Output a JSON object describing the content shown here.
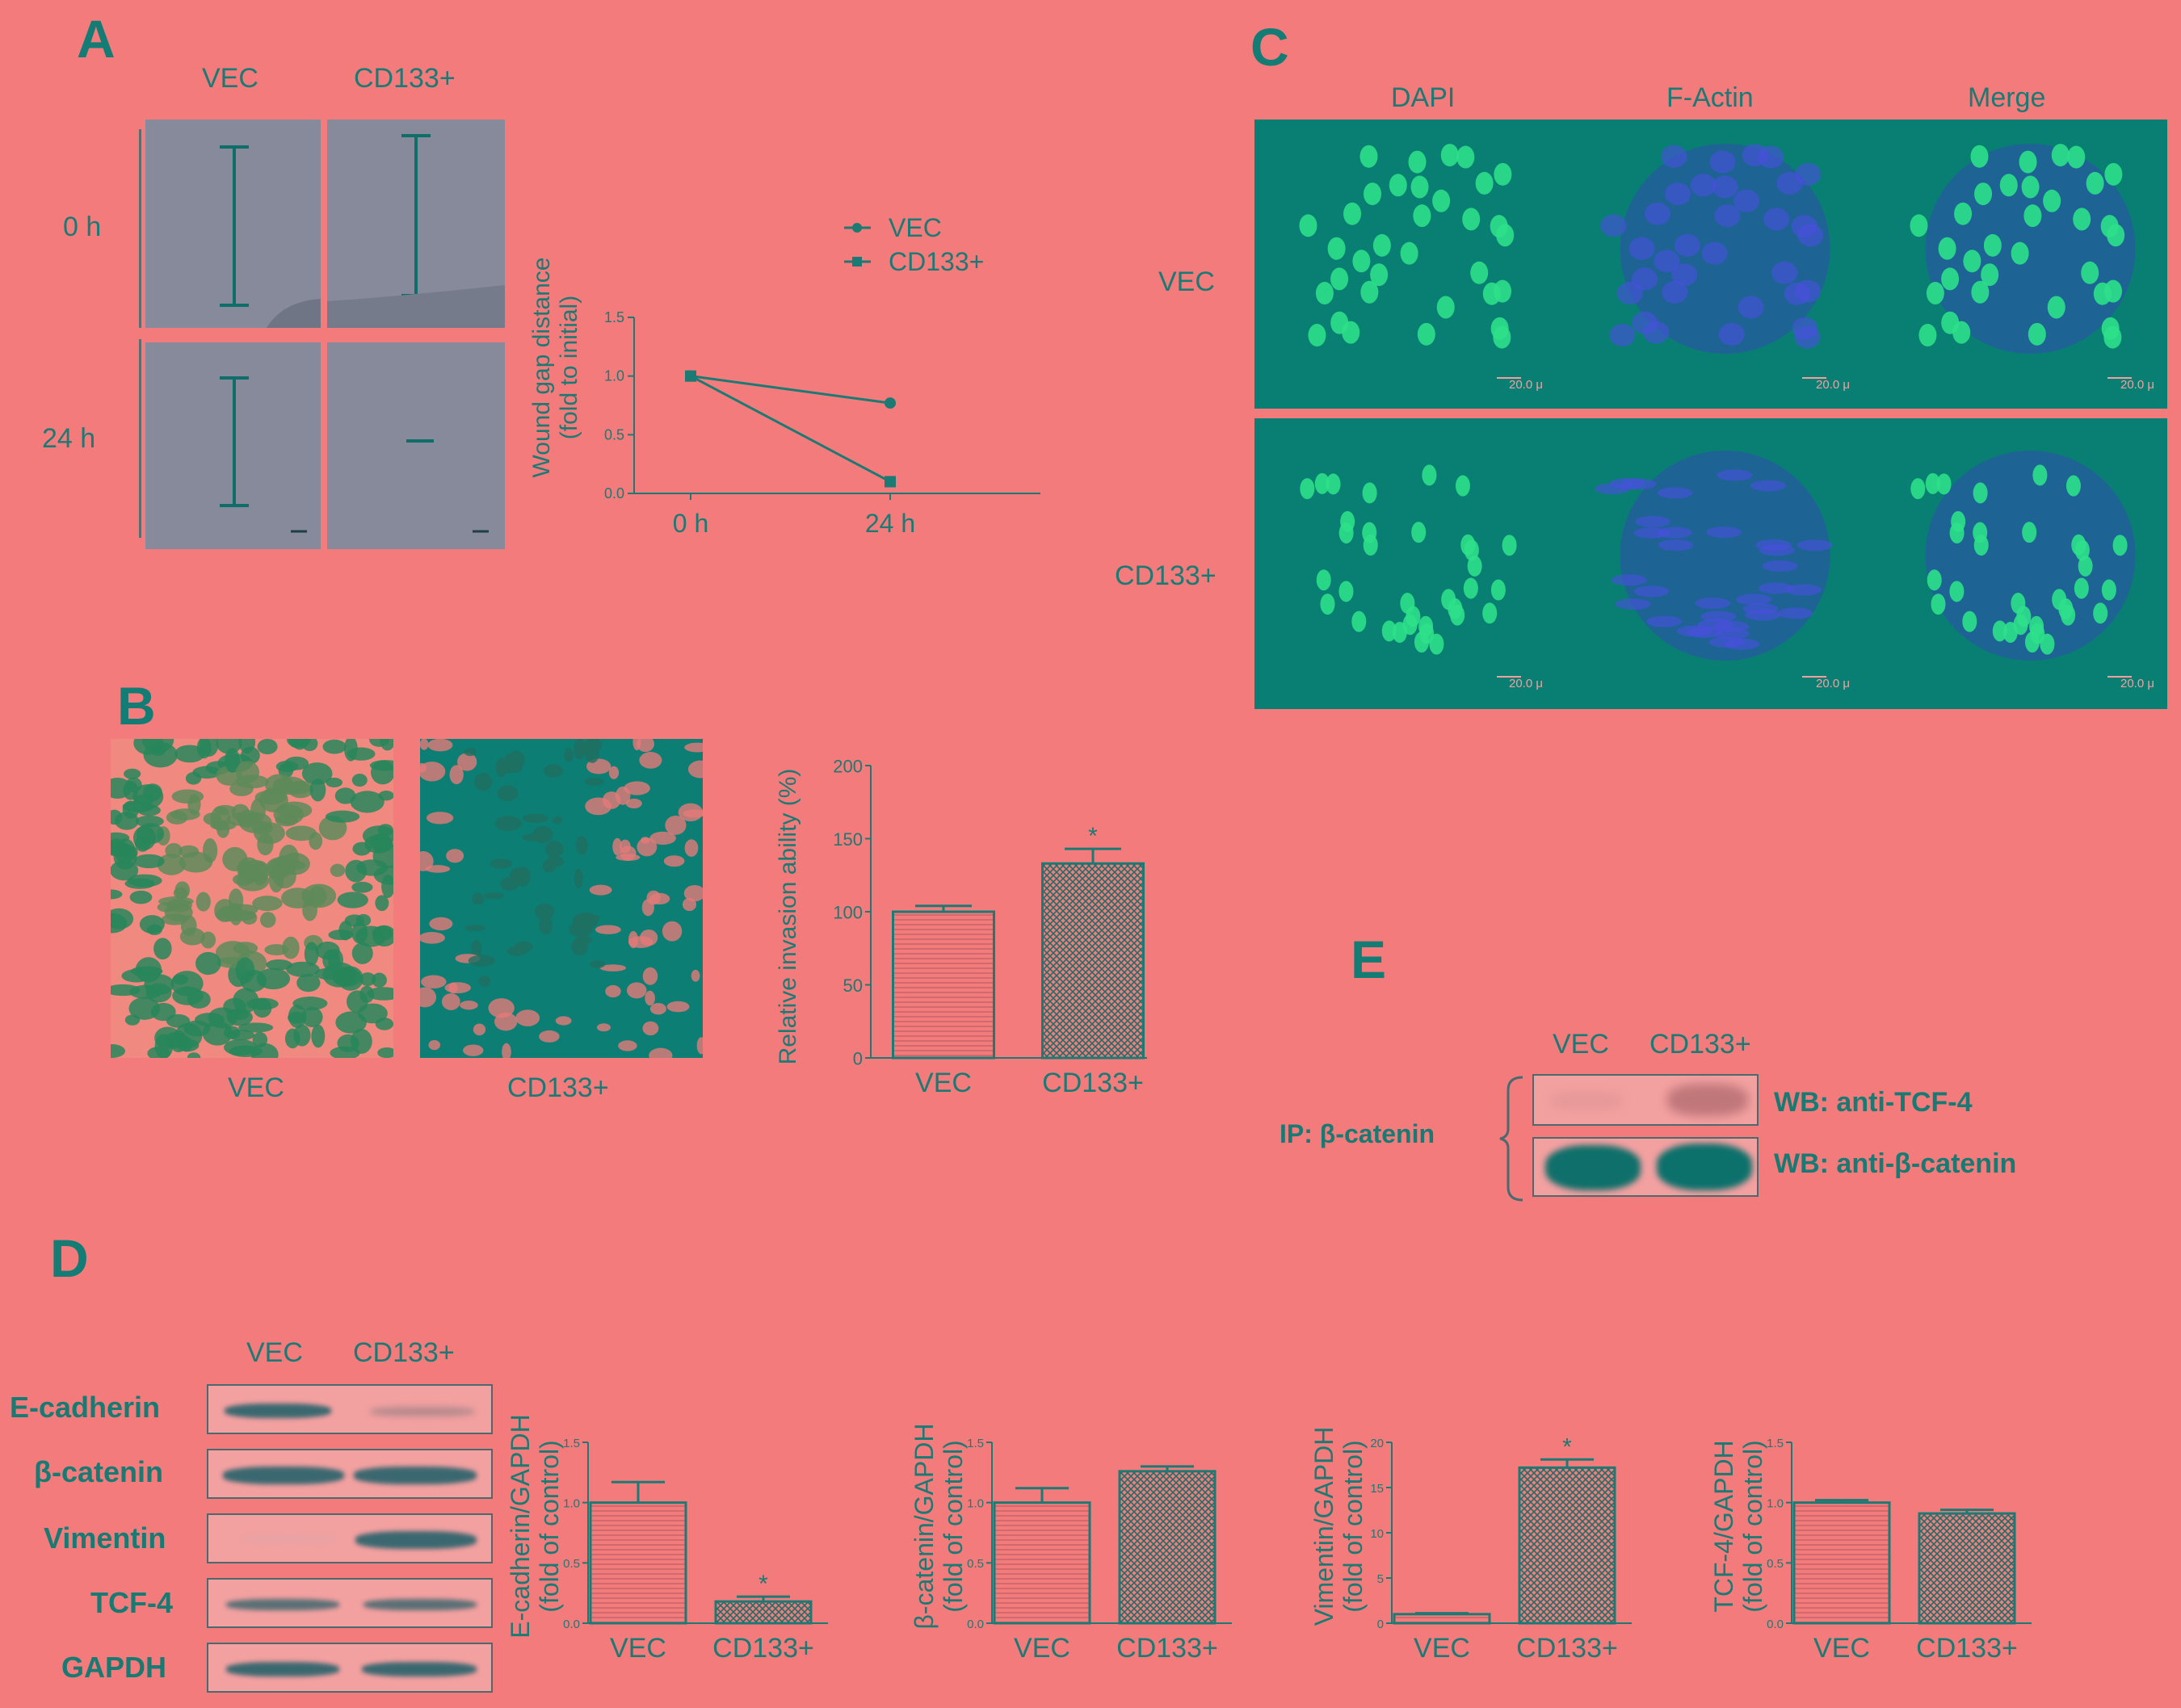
{
  "panels": {
    "A": {
      "letter": "A",
      "col_labels": [
        "VEC",
        "CD133+"
      ],
      "row_labels": [
        "0 h",
        "24 h"
      ],
      "chart_data": {
        "type": "line",
        "x": [
          "0 h",
          "24 h"
        ],
        "series": [
          {
            "name": "VEC",
            "values": [
              1.0,
              0.77
            ],
            "error": [
              0.0,
              0.0
            ]
          },
          {
            "name": "CD133+",
            "values": [
              1.0,
              0.1
            ],
            "error": [
              0.0,
              0.04
            ]
          }
        ],
        "ylabel": "Wound gap distance\n(fold to initial)",
        "yticks": [
          "0.0",
          "0.5",
          "1.0",
          "1.5"
        ],
        "ylim": [
          0,
          1.5
        ],
        "legend": "top-right"
      }
    },
    "B": {
      "letter": "B",
      "image_labels": [
        "VEC",
        "CD133+"
      ],
      "chart_data": {
        "type": "bar",
        "categories": [
          "VEC",
          "CD133+"
        ],
        "values": [
          100,
          133
        ],
        "error": [
          4,
          10
        ],
        "significance": [
          "",
          "*"
        ],
        "ylabel": "Relative invasion ability (%)",
        "yticks": [
          "0",
          "50",
          "100",
          "150",
          "200"
        ],
        "ylim": [
          0,
          200
        ]
      }
    },
    "C": {
      "letter": "C",
      "col_labels": [
        "DAPI",
        "F-Actin",
        "Merge"
      ],
      "row_labels": [
        "VEC",
        "CD133+"
      ],
      "scale_bar": "20.0 μ"
    },
    "D": {
      "letter": "D",
      "lane_labels": [
        "VEC",
        "CD133+"
      ],
      "proteins": [
        "E-cadherin",
        "β-catenin",
        "Vimentin",
        "TCF-4",
        "GAPDH"
      ],
      "charts": [
        {
          "type": "bar",
          "categories": [
            "VEC",
            "CD133+"
          ],
          "values": [
            1.0,
            0.18
          ],
          "error": [
            0.17,
            0.04
          ],
          "significance": [
            "",
            "*"
          ],
          "ylabel": "E-cadherin/GAPDH\n(fold of control)",
          "yticks": [
            "0.0",
            "0.5",
            "1.0",
            "1.5"
          ],
          "ylim": [
            0,
            1.5
          ]
        },
        {
          "type": "bar",
          "categories": [
            "VEC",
            "CD133+"
          ],
          "values": [
            1.0,
            1.26
          ],
          "error": [
            0.12,
            0.04
          ],
          "significance": [
            "",
            ""
          ],
          "ylabel": "β-catenin/GAPDH\n(fold of control)",
          "yticks": [
            "0.0",
            "0.5",
            "1.0",
            "1.5"
          ],
          "ylim": [
            0,
            1.5
          ]
        },
        {
          "type": "bar",
          "categories": [
            "VEC",
            "CD133+"
          ],
          "values": [
            1.0,
            17.2
          ],
          "error": [
            0.1,
            0.9
          ],
          "significance": [
            "",
            "*"
          ],
          "ylabel": "Vimentin/GAPDH\n(fold of control)",
          "yticks": [
            "0",
            "5",
            "10",
            "15",
            "20"
          ],
          "ylim": [
            0,
            20
          ]
        },
        {
          "type": "bar",
          "categories": [
            "VEC",
            "CD133+"
          ],
          "values": [
            1.0,
            0.91
          ],
          "error": [
            0.02,
            0.03
          ],
          "significance": [
            "",
            ""
          ],
          "ylabel": "TCF-4/GAPDH\n(fold of control)",
          "yticks": [
            "0.0",
            "0.5",
            "1.0",
            "1.5"
          ],
          "ylim": [
            0,
            1.5
          ]
        }
      ]
    },
    "E": {
      "letter": "E",
      "lane_labels": [
        "VEC",
        "CD133+"
      ],
      "ip_label": "IP: β-catenin",
      "wb_labels": [
        "WB: anti-TCF-4",
        "WB: anti-β-catenin"
      ]
    }
  },
  "colors": {
    "background": "#f47b7b",
    "ink": "#1c7a74",
    "micro": "#097f74",
    "band": "#3f6a70",
    "photo": "#878a9a"
  }
}
